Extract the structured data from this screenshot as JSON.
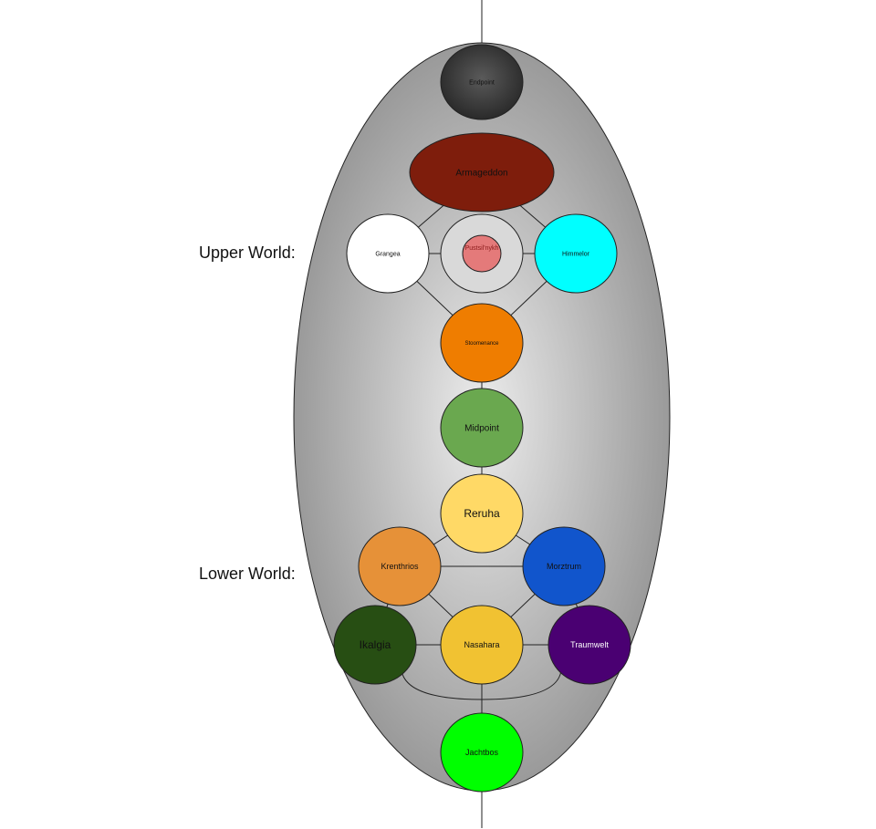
{
  "labels": {
    "upper_world": "Upper World:",
    "lower_world": "Lower World:"
  },
  "nodes": {
    "endpoint": {
      "label": "Endpoint",
      "fill": "#3a3a3a",
      "text_color": "#111111"
    },
    "armageddon": {
      "label": "Armageddon",
      "fill": "#7e1d0c",
      "text_color": "#111111"
    },
    "grangea": {
      "label": "Grangea",
      "fill": "#ffffff",
      "text_color": "#111111"
    },
    "pustsil": {
      "label": "Pustsil'nykh",
      "fill": "#e47a7a",
      "ring_fill": "#d9d9d9",
      "text_color": "#8b1a1a"
    },
    "himmelor": {
      "label": "Himmelor",
      "fill": "#00ffff",
      "text_color": "#111111"
    },
    "stoomenance": {
      "label": "Stoomenance",
      "fill": "#ef7d00",
      "text_color": "#111111"
    },
    "midpoint": {
      "label": "Midpoint",
      "fill": "#6aa84f",
      "text_color": "#111111"
    },
    "reruha": {
      "label": "Reruha",
      "fill": "#ffd966",
      "text_color": "#111111"
    },
    "krenthrios": {
      "label": "Krenthrios",
      "fill": "#e69138",
      "text_color": "#111111"
    },
    "morztrum": {
      "label": "Morztrum",
      "fill": "#1155cc",
      "text_color": "#111111"
    },
    "ikalgia": {
      "label": "Ikalgia",
      "fill": "#274e13",
      "text_color": "#111111"
    },
    "nasahara": {
      "label": "Nasahara",
      "fill": "#f1c232",
      "text_color": "#111111"
    },
    "traumwelt": {
      "label": "Traumwelt",
      "fill": "#4a0072",
      "text_color": "#ffffff"
    },
    "jachtbos": {
      "label": "Jachtbos",
      "fill": "#00ff00",
      "text_color": "#111111"
    }
  },
  "edges": [
    [
      "armageddon",
      "grangea"
    ],
    [
      "armageddon",
      "himmelor"
    ],
    [
      "grangea",
      "pustsil"
    ],
    [
      "pustsil",
      "himmelor"
    ],
    [
      "grangea",
      "stoomenance"
    ],
    [
      "himmelor",
      "stoomenance"
    ],
    [
      "stoomenance",
      "midpoint"
    ],
    [
      "midpoint",
      "reruha"
    ],
    [
      "reruha",
      "krenthrios"
    ],
    [
      "reruha",
      "morztrum"
    ],
    [
      "krenthrios",
      "morztrum"
    ],
    [
      "krenthrios",
      "nasahara"
    ],
    [
      "morztrum",
      "nasahara"
    ],
    [
      "krenthrios",
      "ikalgia"
    ],
    [
      "morztrum",
      "traumwelt"
    ],
    [
      "ikalgia",
      "nasahara"
    ],
    [
      "nasahara",
      "traumwelt"
    ],
    [
      "ikalgia",
      "traumwelt"
    ],
    [
      "nasahara",
      "jachtbos"
    ]
  ],
  "colors": {
    "egg_center": "#ececec",
    "egg_edge": "#9a9a9a",
    "stroke": "#222222"
  }
}
